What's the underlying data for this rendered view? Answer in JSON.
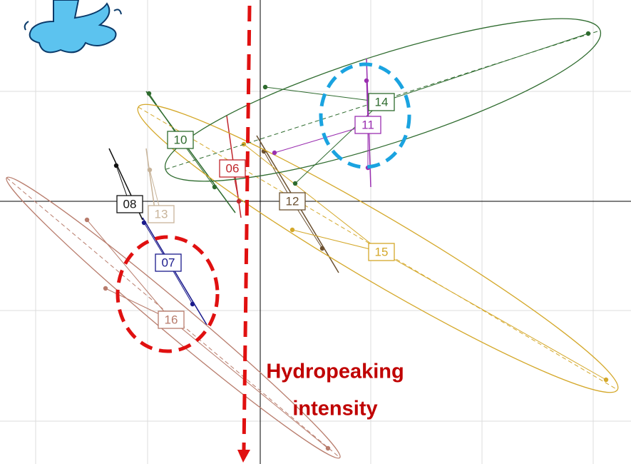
{
  "labels": [
    "10",
    "06",
    "08",
    "13",
    "07",
    "16",
    "12",
    "15",
    "14",
    "11"
  ],
  "annotation": {
    "line1": "Hydropeaking",
    "line2": "intensity"
  }
}
